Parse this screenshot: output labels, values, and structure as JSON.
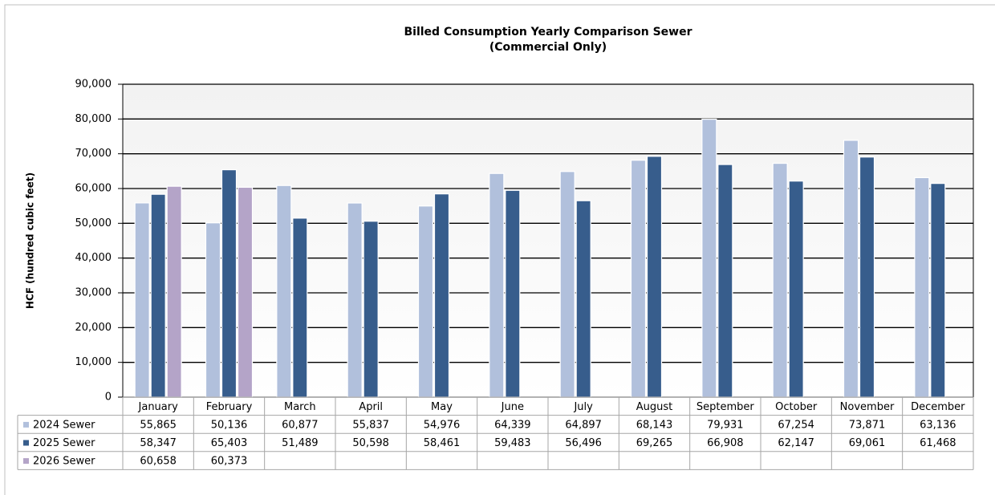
{
  "chart_data": {
    "type": "bar",
    "title": "Billed Consumption Yearly Comparison Sewer",
    "subtitle": "(Commercial Only)",
    "y_label": "HCF (hundred cubic feet)",
    "categories": [
      "January",
      "February",
      "March",
      "April",
      "May",
      "June",
      "July",
      "August",
      "September",
      "October",
      "November",
      "December"
    ],
    "series": [
      {
        "name": "2024 Sewer",
        "color": "#b1c0dc",
        "values": [
          55865,
          50136,
          60877,
          55837,
          54976,
          64339,
          64897,
          68143,
          79931,
          67254,
          73871,
          63136
        ],
        "value_labels": [
          "55,865",
          "50,136",
          "60,877",
          "55,837",
          "54,976",
          "64,339",
          "64,897",
          "68,143",
          "79,931",
          "67,254",
          "73,871",
          "63,136"
        ]
      },
      {
        "name": "2025 Sewer",
        "color": "#375d8c",
        "values": [
          58347,
          65403,
          51489,
          50598,
          58461,
          59483,
          56496,
          69265,
          66908,
          62147,
          69061,
          61468
        ],
        "value_labels": [
          "58,347",
          "65,403",
          "51,489",
          "50,598",
          "58,461",
          "59,483",
          "56,496",
          "69,265",
          "66,908",
          "62,147",
          "69,061",
          "61,468"
        ]
      },
      {
        "name": "2026 Sewer",
        "color": "#b4a4c8",
        "values": [
          60658,
          60373,
          null,
          null,
          null,
          null,
          null,
          null,
          null,
          null,
          null,
          null
        ],
        "value_labels": [
          "60,658",
          "60,373",
          null,
          null,
          null,
          null,
          null,
          null,
          null,
          null,
          null,
          null
        ]
      }
    ],
    "ylim": [
      0,
      90000
    ],
    "yticks": [
      0,
      {
        "value": 10000,
        "label": "10,000"
      },
      {
        "value": 20000,
        "label": "20,000"
      },
      {
        "value": 30000,
        "label": "30,000"
      },
      {
        "value": 40000,
        "label": "40,000"
      },
      {
        "value": 50000,
        "label": "50,000"
      },
      {
        "value": 60000,
        "label": "60,000"
      },
      {
        "value": 70000,
        "label": "70,000"
      },
      {
        "value": 80000,
        "label": "80,000"
      },
      {
        "value": 90000,
        "label": "90,000"
      }
    ],
    "grid": true
  }
}
